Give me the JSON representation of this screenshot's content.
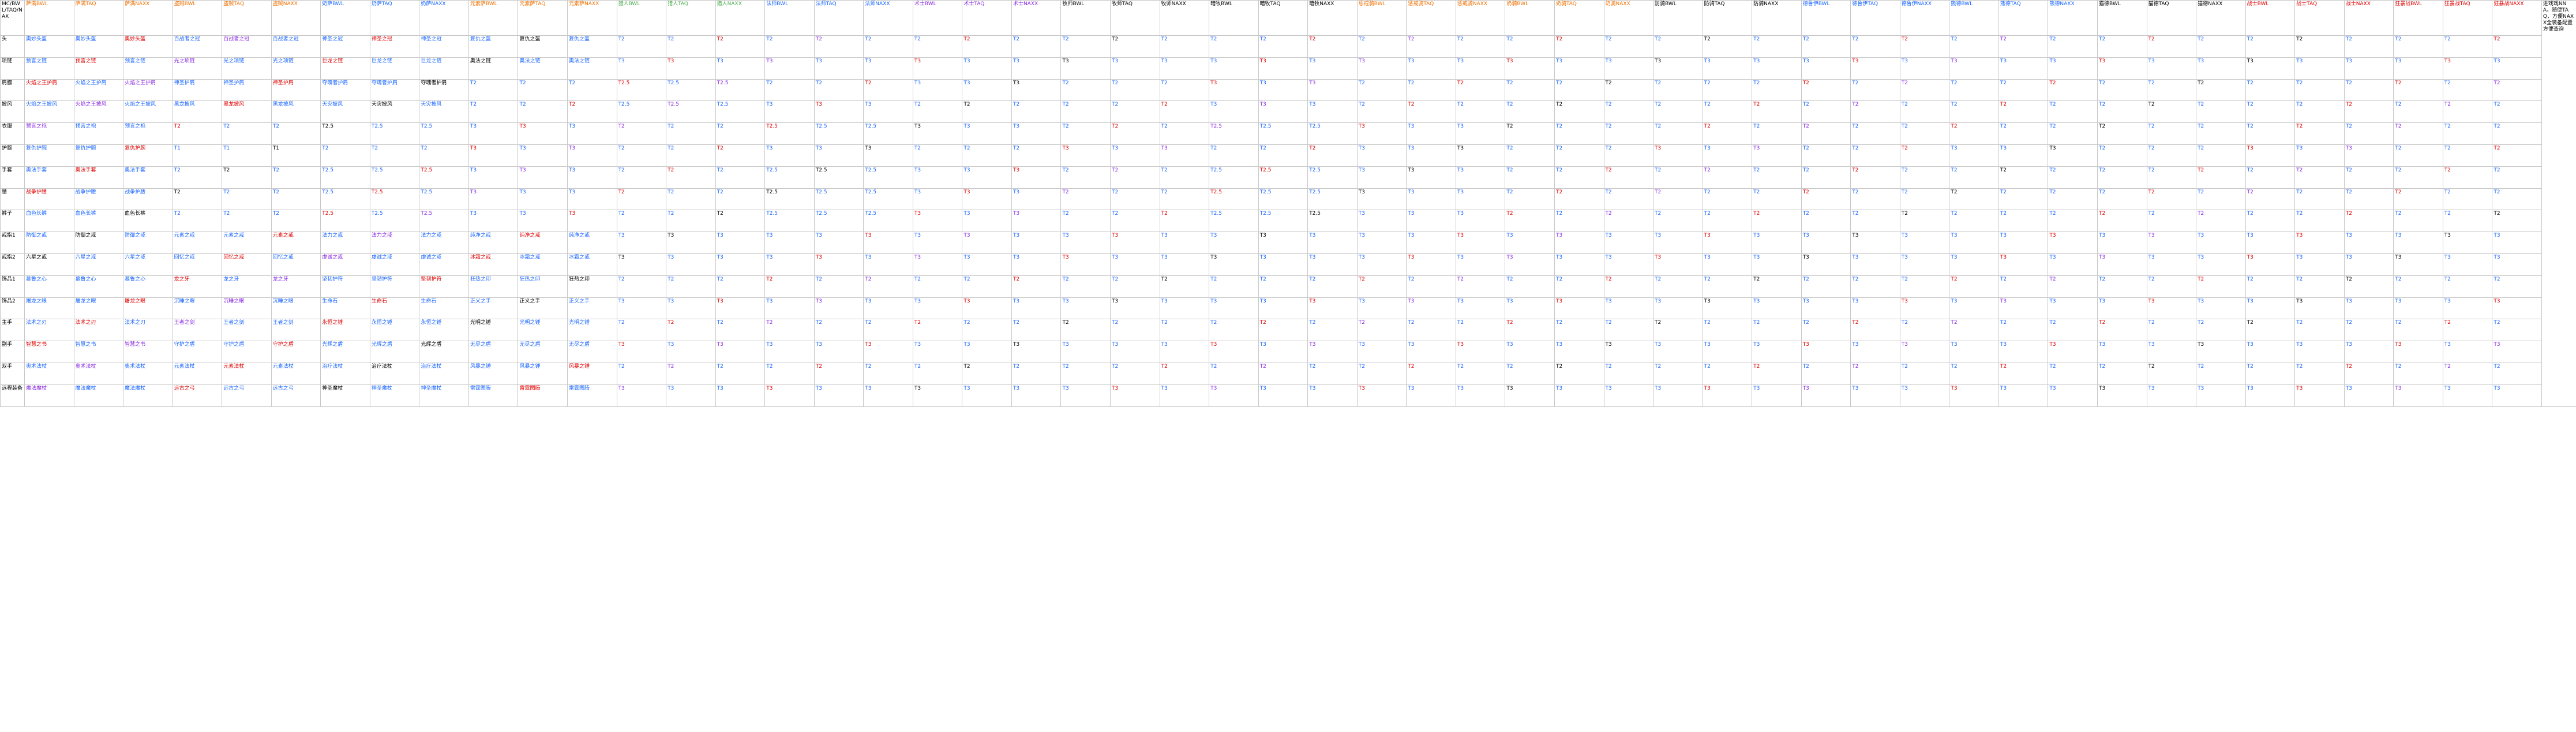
{
  "corner_label": "MC/BWL/TAQ/NAX",
  "columns": [
    {
      "label": "萨满BWL",
      "color": "#f07000"
    },
    {
      "label": "萨满TAQ",
      "color": "#f07000"
    },
    {
      "label": "萨满NAXX",
      "color": "#f07000"
    },
    {
      "label": "盗贼BWL",
      "color": "#f07000"
    },
    {
      "label": "盗贼TAQ",
      "color": "#f07000"
    },
    {
      "label": "盗贼NAXX",
      "color": "#f07000"
    },
    {
      "label": "奶萨BWL",
      "color": "#1a66ff"
    },
    {
      "label": "奶萨TAQ",
      "color": "#1a66ff"
    },
    {
      "label": "奶萨NAXX",
      "color": "#1a66ff"
    },
    {
      "label": "元素萨BWL",
      "color": "#f07000"
    },
    {
      "label": "元素萨TAQ",
      "color": "#f07000"
    },
    {
      "label": "元素萨NAXX",
      "color": "#f07000"
    },
    {
      "label": "猎人BWL",
      "color": "#4caf50"
    },
    {
      "label": "猎人TAQ",
      "color": "#4caf50"
    },
    {
      "label": "猎人NAXX",
      "color": "#4caf50"
    },
    {
      "label": "法师BWL",
      "color": "#1a66ff"
    },
    {
      "label": "法师TAQ",
      "color": "#1a66ff"
    },
    {
      "label": "法师NAXX",
      "color": "#1a66ff"
    },
    {
      "label": "术士BWL",
      "color": "#8a2be2"
    },
    {
      "label": "术士TAQ",
      "color": "#8a2be2"
    },
    {
      "label": "术士NAXX",
      "color": "#8a2be2"
    },
    {
      "label": "牧师BWL",
      "color": "#000000"
    },
    {
      "label": "牧师TAQ",
      "color": "#000000"
    },
    {
      "label": "牧师NAXX",
      "color": "#000000"
    },
    {
      "label": "暗牧BWL",
      "color": "#000000"
    },
    {
      "label": "暗牧TAQ",
      "color": "#000000"
    },
    {
      "label": "暗牧NAXX",
      "color": "#000000"
    },
    {
      "label": "惩戒骑BWL",
      "color": "#f07000"
    },
    {
      "label": "惩戒骑TAQ",
      "color": "#f07000"
    },
    {
      "label": "惩戒骑NAXX",
      "color": "#f07000"
    },
    {
      "label": "奶骑BWL",
      "color": "#f07000"
    },
    {
      "label": "奶骑TAQ",
      "color": "#f07000"
    },
    {
      "label": "奶骑NAXX",
      "color": "#f07000"
    },
    {
      "label": "防骑BWL",
      "color": "#000000"
    },
    {
      "label": "防骑TAQ",
      "color": "#000000"
    },
    {
      "label": "防骑NAXX",
      "color": "#000000"
    },
    {
      "label": "德鲁伊BWL",
      "color": "#1a66ff"
    },
    {
      "label": "德鲁伊TAQ",
      "color": "#1a66ff"
    },
    {
      "label": "德鲁伊NAXX",
      "color": "#1a66ff"
    },
    {
      "label": "熊德BWL",
      "color": "#1a66ff"
    },
    {
      "label": "熊德TAQ",
      "color": "#1a66ff"
    },
    {
      "label": "熊德NAXX",
      "color": "#1a66ff"
    },
    {
      "label": "猫德BWL",
      "color": "#000000"
    },
    {
      "label": "猫德TAQ",
      "color": "#000000"
    },
    {
      "label": "猫德NAXX",
      "color": "#000000"
    },
    {
      "label": "战士BWL",
      "color": "#e00000"
    },
    {
      "label": "战士TAQ",
      "color": "#e00000"
    },
    {
      "label": "战士NAXX",
      "color": "#e00000"
    },
    {
      "label": "狂暴战BWL",
      "color": "#e00000"
    },
    {
      "label": "狂暴战TAQ",
      "color": "#e00000"
    },
    {
      "label": "狂暴战NAXX",
      "color": "#e00000"
    }
  ],
  "note": "进戏戏NNA，随便TAQ，方便NAXX全装备配置方便查询",
  "rows": [
    {
      "label": "头",
      "cells": [
        "奥妙头盔",
        "奥妙头盔",
        "奥妙头盔",
        "百战者之冠",
        "百战者之冠",
        "百战者之冠",
        "神圣之冠",
        "神圣之冠",
        "神圣之冠",
        "复仇之盔",
        "复仇之盔",
        "复仇之盔",
        "T2",
        "T2",
        "T2",
        "T2",
        "T2",
        "T2",
        "T2",
        "T2",
        "T2",
        "T2",
        "T2",
        "T2",
        "T2",
        "T2",
        "T2",
        "T2",
        "T2",
        "T2",
        "T2",
        "T2",
        "T2",
        "T2",
        "T2",
        "T2",
        "T2",
        "T2",
        "T2",
        "T2",
        "T2",
        "T2",
        "T2",
        "T2",
        "T2",
        "T2",
        "T2",
        "T2",
        "T2",
        "T2",
        "T2"
      ]
    },
    {
      "label": "项链",
      "cells": [
        "预言之链",
        "预言之链",
        "预言之链",
        "光之项链",
        "光之项链",
        "光之项链",
        "巨龙之链",
        "巨龙之链",
        "巨龙之链",
        "奥法之链",
        "奥法之链",
        "奥法之链",
        "T3",
        "T3",
        "T3",
        "T3",
        "T3",
        "T3",
        "T3",
        "T3",
        "T3",
        "T3",
        "T3",
        "T3",
        "T3",
        "T3",
        "T3",
        "T3",
        "T3",
        "T3",
        "T3",
        "T3",
        "T3",
        "T3",
        "T3",
        "T3",
        "T3",
        "T3",
        "T3",
        "T3",
        "T3",
        "T3",
        "T3",
        "T3",
        "T3",
        "T3",
        "T3",
        "T3",
        "T3",
        "T3",
        "T3"
      ]
    },
    {
      "label": "肩膀",
      "cells": [
        "火焰之王护肩",
        "火焰之王护肩",
        "火焰之王护肩",
        "神圣护肩",
        "神圣护肩",
        "神圣护肩",
        "夺魂者护肩",
        "夺魂者护肩",
        "夺魂者护肩",
        "T2",
        "T2",
        "T2",
        "T2.5",
        "T2.5",
        "T2.5",
        "T2",
        "T2",
        "T2",
        "T3",
        "T3",
        "T3",
        "T2",
        "T2",
        "T2",
        "T3",
        "T3",
        "T3",
        "T2",
        "T2",
        "T2",
        "T2",
        "T2",
        "T2",
        "T2",
        "T2",
        "T2",
        "T2",
        "T2",
        "T2",
        "T2",
        "T2",
        "T2",
        "T2",
        "T2",
        "T2",
        "T2",
        "T2",
        "T2",
        "T2",
        "T2",
        "T2"
      ]
    },
    {
      "label": "披风",
      "cells": [
        "火焰之王披风",
        "火焰之王披风",
        "火焰之王披风",
        "黑龙披风",
        "黑龙披风",
        "黑龙披风",
        "天灾披风",
        "天灾披风",
        "天灾披风",
        "T2",
        "T2",
        "T2",
        "T2.5",
        "T2.5",
        "T2.5",
        "T3",
        "T3",
        "T3",
        "T2",
        "T2",
        "T2",
        "T2",
        "T2",
        "T2",
        "T3",
        "T3",
        "T3",
        "T2",
        "T2",
        "T2",
        "T2",
        "T2",
        "T2",
        "T2",
        "T2",
        "T2",
        "T2",
        "T2",
        "T2",
        "T2",
        "T2",
        "T2",
        "T2",
        "T2",
        "T2",
        "T2",
        "T2",
        "T2",
        "T2",
        "T2",
        "T2"
      ]
    },
    {
      "label": "衣服",
      "cells": [
        "预言之袍",
        "预言之袍",
        "预言之袍",
        "T2",
        "T2",
        "T2",
        "T2.5",
        "T2.5",
        "T2.5",
        "T3",
        "T3",
        "T3",
        "T2",
        "T2",
        "T2",
        "T2.5",
        "T2.5",
        "T2.5",
        "T3",
        "T3",
        "T3",
        "T2",
        "T2",
        "T2",
        "T2.5",
        "T2.5",
        "T2.5",
        "T3",
        "T3",
        "T3",
        "T2",
        "T2",
        "T2",
        "T2",
        "T2",
        "T2",
        "T2",
        "T2",
        "T2",
        "T2",
        "T2",
        "T2",
        "T2",
        "T2",
        "T2",
        "T2",
        "T2",
        "T2",
        "T2",
        "T2",
        "T2"
      ]
    },
    {
      "label": "护腕",
      "cells": [
        "复仇护腕",
        "复仇护腕",
        "复仇护腕",
        "T1",
        "T1",
        "T1",
        "T2",
        "T2",
        "T2",
        "T3",
        "T3",
        "T3",
        "T2",
        "T2",
        "T2",
        "T3",
        "T3",
        "T3",
        "T2",
        "T2",
        "T2",
        "T3",
        "T3",
        "T3",
        "T2",
        "T2",
        "T2",
        "T3",
        "T3",
        "T3",
        "T2",
        "T2",
        "T2",
        "T3",
        "T3",
        "T3",
        "T2",
        "T2",
        "T2",
        "T3",
        "T3",
        "T3",
        "T2",
        "T2",
        "T2",
        "T3",
        "T3",
        "T3",
        "T2",
        "T2",
        "T2"
      ]
    },
    {
      "label": "手套",
      "cells": [
        "奥法手套",
        "奥法手套",
        "奥法手套",
        "T2",
        "T2",
        "T2",
        "T2.5",
        "T2.5",
        "T2.5",
        "T3",
        "T3",
        "T3",
        "T2",
        "T2",
        "T2",
        "T2.5",
        "T2.5",
        "T2.5",
        "T3",
        "T3",
        "T3",
        "T2",
        "T2",
        "T2",
        "T2.5",
        "T2.5",
        "T2.5",
        "T3",
        "T3",
        "T3",
        "T2",
        "T2",
        "T2",
        "T2",
        "T2",
        "T2",
        "T2",
        "T2",
        "T2",
        "T2",
        "T2",
        "T2",
        "T2",
        "T2",
        "T2",
        "T2",
        "T2",
        "T2",
        "T2",
        "T2",
        "T2"
      ]
    },
    {
      "label": "腰",
      "cells": [
        "战争护腰",
        "战争护腰",
        "战争护腰",
        "T2",
        "T2",
        "T2",
        "T2.5",
        "T2.5",
        "T2.5",
        "T3",
        "T3",
        "T3",
        "T2",
        "T2",
        "T2",
        "T2.5",
        "T2.5",
        "T2.5",
        "T3",
        "T3",
        "T3",
        "T2",
        "T2",
        "T2",
        "T2.5",
        "T2.5",
        "T2.5",
        "T3",
        "T3",
        "T3",
        "T2",
        "T2",
        "T2",
        "T2",
        "T2",
        "T2",
        "T2",
        "T2",
        "T2",
        "T2",
        "T2",
        "T2",
        "T2",
        "T2",
        "T2",
        "T2",
        "T2",
        "T2",
        "T2",
        "T2",
        "T2"
      ]
    },
    {
      "label": "裤子",
      "cells": [
        "血色长裤",
        "血色长裤",
        "血色长裤",
        "T2",
        "T2",
        "T2",
        "T2.5",
        "T2.5",
        "T2.5",
        "T3",
        "T3",
        "T3",
        "T2",
        "T2",
        "T2",
        "T2.5",
        "T2.5",
        "T2.5",
        "T3",
        "T3",
        "T3",
        "T2",
        "T2",
        "T2",
        "T2.5",
        "T2.5",
        "T2.5",
        "T3",
        "T3",
        "T3",
        "T2",
        "T2",
        "T2",
        "T2",
        "T2",
        "T2",
        "T2",
        "T2",
        "T2",
        "T2",
        "T2",
        "T2",
        "T2",
        "T2",
        "T2",
        "T2",
        "T2",
        "T2",
        "T2",
        "T2",
        "T2"
      ]
    },
    {
      "label": "戒指1",
      "cells": [
        "防御之戒",
        "防御之戒",
        "防御之戒",
        "元素之戒",
        "元素之戒",
        "元素之戒",
        "法力之戒",
        "法力之戒",
        "法力之戒",
        "纯净之戒",
        "纯净之戒",
        "纯净之戒",
        "T3",
        "T3",
        "T3",
        "T3",
        "T3",
        "T3",
        "T3",
        "T3",
        "T3",
        "T3",
        "T3",
        "T3",
        "T3",
        "T3",
        "T3",
        "T3",
        "T3",
        "T3",
        "T3",
        "T3",
        "T3",
        "T3",
        "T3",
        "T3",
        "T3",
        "T3",
        "T3",
        "T3",
        "T3",
        "T3",
        "T3",
        "T3",
        "T3",
        "T3",
        "T3",
        "T3",
        "T3",
        "T3",
        "T3"
      ]
    },
    {
      "label": "戒指2",
      "cells": [
        "六星之戒",
        "六星之戒",
        "六星之戒",
        "回忆之戒",
        "回忆之戒",
        "回忆之戒",
        "虔诚之戒",
        "虔诚之戒",
        "虔诚之戒",
        "冰霜之戒",
        "冰霜之戒",
        "冰霜之戒",
        "T3",
        "T3",
        "T3",
        "T3",
        "T3",
        "T3",
        "T3",
        "T3",
        "T3",
        "T3",
        "T3",
        "T3",
        "T3",
        "T3",
        "T3",
        "T3",
        "T3",
        "T3",
        "T3",
        "T3",
        "T3",
        "T3",
        "T3",
        "T3",
        "T3",
        "T3",
        "T3",
        "T3",
        "T3",
        "T3",
        "T3",
        "T3",
        "T3",
        "T3",
        "T3",
        "T3",
        "T3",
        "T3",
        "T3"
      ]
    },
    {
      "label": "饰品1",
      "cells": [
        "慕鲁之心",
        "慕鲁之心",
        "慕鲁之心",
        "龙之牙",
        "龙之牙",
        "龙之牙",
        "坚韧护符",
        "坚韧护符",
        "坚韧护符",
        "狂热之印",
        "狂热之印",
        "狂热之印",
        "T2",
        "T2",
        "T2",
        "T2",
        "T2",
        "T2",
        "T2",
        "T2",
        "T2",
        "T2",
        "T2",
        "T2",
        "T2",
        "T2",
        "T2",
        "T2",
        "T2",
        "T2",
        "T2",
        "T2",
        "T2",
        "T2",
        "T2",
        "T2",
        "T2",
        "T2",
        "T2",
        "T2",
        "T2",
        "T2",
        "T2",
        "T2",
        "T2",
        "T2",
        "T2",
        "T2",
        "T2",
        "T2",
        "T2"
      ]
    },
    {
      "label": "饰品2",
      "cells": [
        "屠龙之眼",
        "屠龙之眼",
        "屠龙之眼",
        "沉睡之眼",
        "沉睡之眼",
        "沉睡之眼",
        "生命石",
        "生命石",
        "生命石",
        "正义之手",
        "正义之手",
        "正义之手",
        "T3",
        "T3",
        "T3",
        "T3",
        "T3",
        "T3",
        "T3",
        "T3",
        "T3",
        "T3",
        "T3",
        "T3",
        "T3",
        "T3",
        "T3",
        "T3",
        "T3",
        "T3",
        "T3",
        "T3",
        "T3",
        "T3",
        "T3",
        "T3",
        "T3",
        "T3",
        "T3",
        "T3",
        "T3",
        "T3",
        "T3",
        "T3",
        "T3",
        "T3",
        "T3",
        "T3",
        "T3",
        "T3",
        "T3"
      ]
    },
    {
      "label": "主手",
      "cells": [
        "法术之刃",
        "法术之刃",
        "法术之刃",
        "王者之剑",
        "王者之剑",
        "王者之剑",
        "永恒之锤",
        "永恒之锤",
        "永恒之锤",
        "光明之锤",
        "光明之锤",
        "光明之锤",
        "T2",
        "T2",
        "T2",
        "T2",
        "T2",
        "T2",
        "T2",
        "T2",
        "T2",
        "T2",
        "T2",
        "T2",
        "T2",
        "T2",
        "T2",
        "T2",
        "T2",
        "T2",
        "T2",
        "T2",
        "T2",
        "T2",
        "T2",
        "T2",
        "T2",
        "T2",
        "T2",
        "T2",
        "T2",
        "T2",
        "T2",
        "T2",
        "T2",
        "T2",
        "T2",
        "T2",
        "T2",
        "T2",
        "T2"
      ]
    },
    {
      "label": "副手",
      "cells": [
        "智慧之书",
        "智慧之书",
        "智慧之书",
        "守护之盾",
        "守护之盾",
        "守护之盾",
        "光辉之盾",
        "光辉之盾",
        "光辉之盾",
        "无尽之盾",
        "无尽之盾",
        "无尽之盾",
        "T3",
        "T3",
        "T3",
        "T3",
        "T3",
        "T3",
        "T3",
        "T3",
        "T3",
        "T3",
        "T3",
        "T3",
        "T3",
        "T3",
        "T3",
        "T3",
        "T3",
        "T3",
        "T3",
        "T3",
        "T3",
        "T3",
        "T3",
        "T3",
        "T3",
        "T3",
        "T3",
        "T3",
        "T3",
        "T3",
        "T3",
        "T3",
        "T3",
        "T3",
        "T3",
        "T3",
        "T3",
        "T3",
        "T3"
      ]
    },
    {
      "label": "双手",
      "cells": [
        "奥术法杖",
        "奥术法杖",
        "奥术法杖",
        "元素法杖",
        "元素法杖",
        "元素法杖",
        "治疗法杖",
        "治疗法杖",
        "治疗法杖",
        "风暴之锤",
        "风暴之锤",
        "风暴之锤",
        "T2",
        "T2",
        "T2",
        "T2",
        "T2",
        "T2",
        "T2",
        "T2",
        "T2",
        "T2",
        "T2",
        "T2",
        "T2",
        "T2",
        "T2",
        "T2",
        "T2",
        "T2",
        "T2",
        "T2",
        "T2",
        "T2",
        "T2",
        "T2",
        "T2",
        "T2",
        "T2",
        "T2",
        "T2",
        "T2",
        "T2",
        "T2",
        "T2",
        "T2",
        "T2",
        "T2",
        "T2",
        "T2",
        "T2"
      ]
    },
    {
      "label": "远程装备",
      "cells": [
        "魔法魔杖",
        "魔法魔杖",
        "魔法魔杖",
        "远古之弓",
        "远古之弓",
        "远古之弓",
        "神圣魔杖",
        "神圣魔杖",
        "神圣魔杖",
        "雷霆图腾",
        "雷霆图腾",
        "雷霆图腾",
        "T3",
        "T3",
        "T3",
        "T3",
        "T3",
        "T3",
        "T3",
        "T3",
        "T3",
        "T3",
        "T3",
        "T3",
        "T3",
        "T3",
        "T3",
        "T3",
        "T3",
        "T3",
        "T3",
        "T3",
        "T3",
        "T3",
        "T3",
        "T3",
        "T3",
        "T3",
        "T3",
        "T3",
        "T3",
        "T3",
        "T3",
        "T3",
        "T3",
        "T3",
        "T3",
        "T3",
        "T3",
        "T3",
        "T3"
      ]
    }
  ],
  "cell_color_cycle": [
    "#1a66ff",
    "#1a66ff",
    "#e00000",
    "#1a66ff",
    "#8a2be2",
    "#1a66ff",
    "#1a66ff",
    "#e00000",
    "#1a66ff",
    "#1a66ff",
    "#000000",
    "#1a66ff"
  ]
}
